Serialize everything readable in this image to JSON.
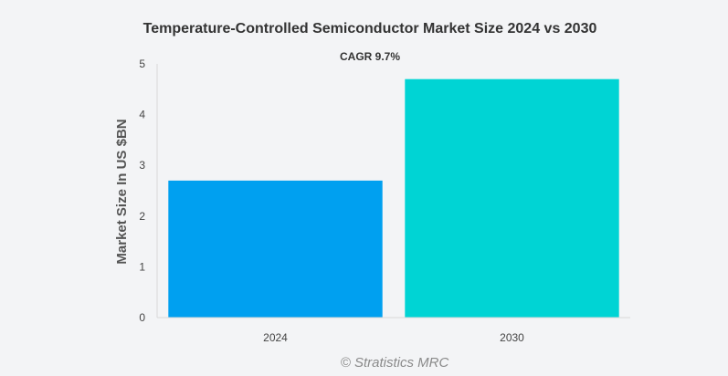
{
  "chart_data": {
    "type": "bar",
    "title": "Temperature-Controlled Semiconductor Market Size 2024 vs 2030",
    "annotation": "CAGR 9.7%",
    "xlabel": "",
    "ylabel": "Market Size In US $BN",
    "categories": [
      "2024",
      "2030"
    ],
    "values": [
      2.7,
      4.7
    ],
    "colors": [
      "#00a0f0",
      "#00d4d4"
    ],
    "ylim": [
      0,
      5
    ],
    "yticks": [
      0,
      1,
      2,
      3,
      4,
      5
    ],
    "grid": false,
    "legend": "none"
  },
  "watermark": "© Stratistics MRC"
}
